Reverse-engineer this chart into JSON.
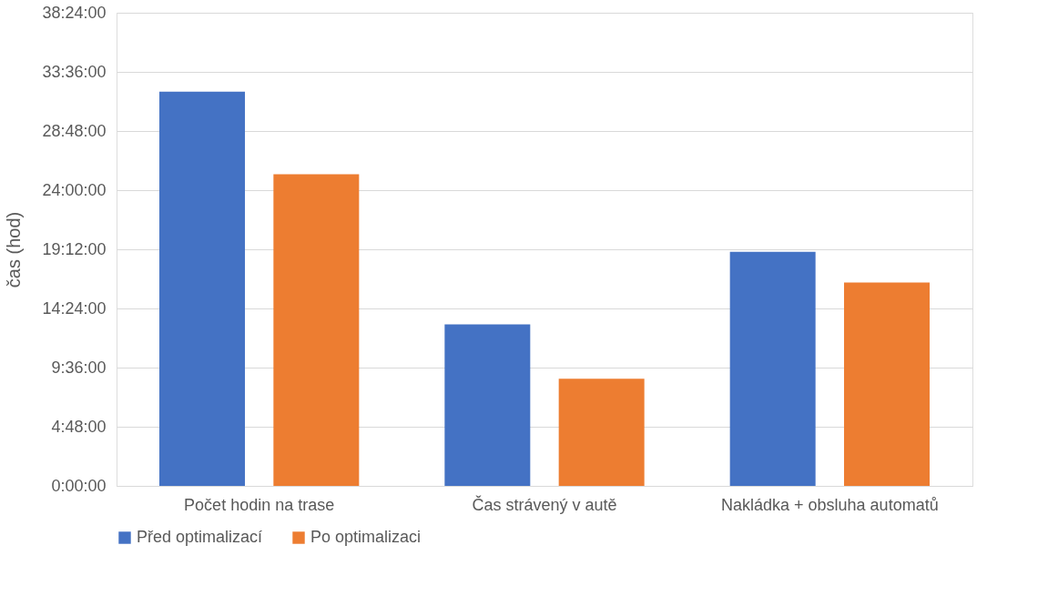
{
  "chart_data": {
    "type": "bar",
    "ylabel": "čas (hod)",
    "categories": [
      "Počet hodin na trase",
      "Čas strávený v autě",
      "Nakládka + obsluha automatů"
    ],
    "series": [
      {
        "name": "Před optimalizací",
        "color": "#4472c4",
        "values": [
          32.0,
          13.1,
          19.0
        ]
      },
      {
        "name": "Po optimalizaci",
        "color": "#ed7d31",
        "values": [
          25.3,
          8.7,
          16.5
        ]
      }
    ],
    "ylim": [
      0,
      38.4
    ],
    "yticks": [
      {
        "value": 0,
        "label": "0:00:00"
      },
      {
        "value": 4.8,
        "label": "4:48:00"
      },
      {
        "value": 9.6,
        "label": "9:36:00"
      },
      {
        "value": 14.4,
        "label": "14:24:00"
      },
      {
        "value": 19.2,
        "label": "19:12:00"
      },
      {
        "value": 24,
        "label": "24:00:00"
      },
      {
        "value": 28.8,
        "label": "28:48:00"
      },
      {
        "value": 33.6,
        "label": "33:36:00"
      },
      {
        "value": 38.4,
        "label": "38:24:00"
      }
    ],
    "grid": "y",
    "legend": "bottom"
  }
}
